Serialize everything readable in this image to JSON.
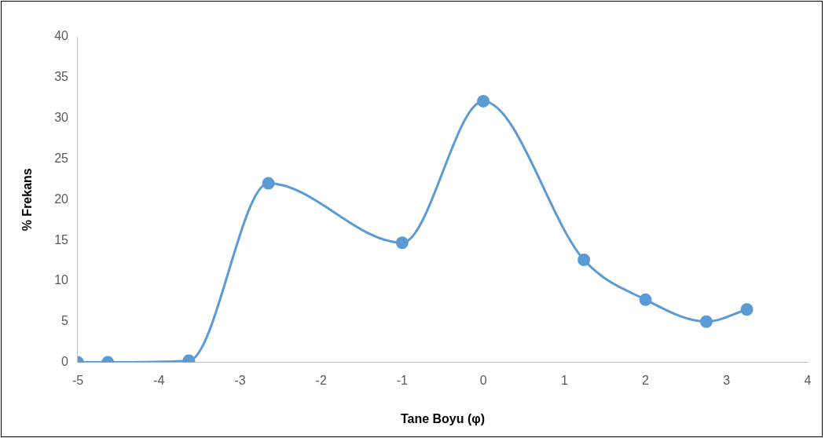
{
  "chart_data": {
    "type": "line",
    "xlabel": "Tane Boyu (φ)",
    "ylabel": "% Frekans",
    "x": [
      -5,
      -4.63,
      -3.63,
      -2.65,
      -1,
      0,
      1.24,
      2,
      2.75,
      3.25
    ],
    "series": [
      {
        "color": "#5b9bd5",
        "values": [
          0,
          0,
          0.2,
          22,
          14.7,
          32.1,
          12.6,
          7.7,
          5,
          6.5
        ]
      }
    ],
    "xlim": [
      -5,
      4
    ],
    "xticks": [
      -5,
      -4,
      -3,
      -2,
      -1,
      0,
      1,
      2,
      3,
      4
    ],
    "ylim": [
      0,
      40
    ],
    "yticks": [
      0,
      5,
      10,
      15,
      20,
      25,
      30,
      35,
      40
    ],
    "grid": false,
    "legend": false,
    "marker": "circle",
    "line_style": "solid"
  }
}
